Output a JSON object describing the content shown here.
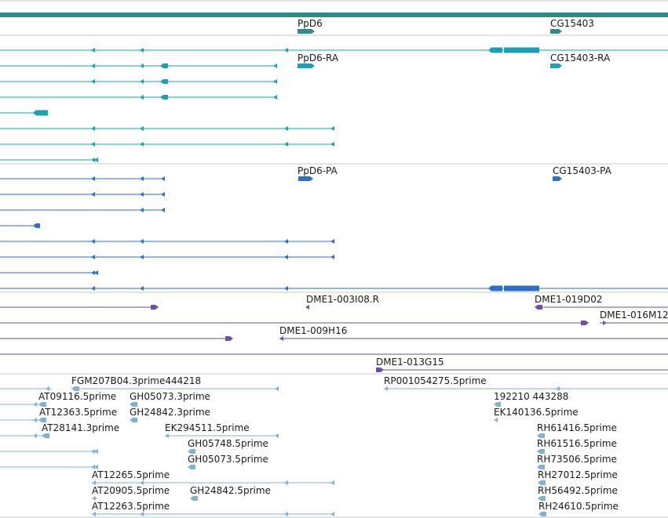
{
  "colors": {
    "gene": "#2e8b8b",
    "transcript_teal": "#1aa0b8",
    "transcript_blue": "#2f6fc4",
    "clone": "#6b4fa8",
    "est": "#7fb2d9",
    "separator": "#c8c8c8"
  },
  "tracks": {
    "genes": {
      "labels": [
        "PpD6",
        "CG15403"
      ]
    },
    "transcripts_1": {
      "labels": [
        "PpD6-RA",
        "CG15403-RA"
      ]
    },
    "transcripts_2": {
      "labels": [
        "PpD6-PA",
        "CG15403-PA"
      ]
    },
    "clones": {
      "labels": [
        "DME1-003I08.R",
        "DME1-019D02",
        "DME1-016M12",
        "DME1-009H16",
        "DME1-013G15"
      ]
    },
    "ests": {
      "labels": [
        "FGM207B04.3prime444218",
        "RP001054275.5prime",
        "AT09116.5prime",
        "GH05073.3prime",
        "192210 443288",
        "AT12363.5prime",
        "GH24842.3prime",
        "EK140136.5prime",
        "AT28141.3prime",
        "EK294511.5prime",
        "RH61416.5prime",
        "GH05748.5prime",
        "RH61516.5prime",
        "GH05073.5prime",
        "RH73506.5prime",
        "AT12265.5prime",
        "RH27012.5prime",
        "AT20905.5prime",
        "GH24842.5prime",
        "RH56492.5prime",
        "AT12263.5prime",
        "RH24610.5prime"
      ]
    }
  }
}
